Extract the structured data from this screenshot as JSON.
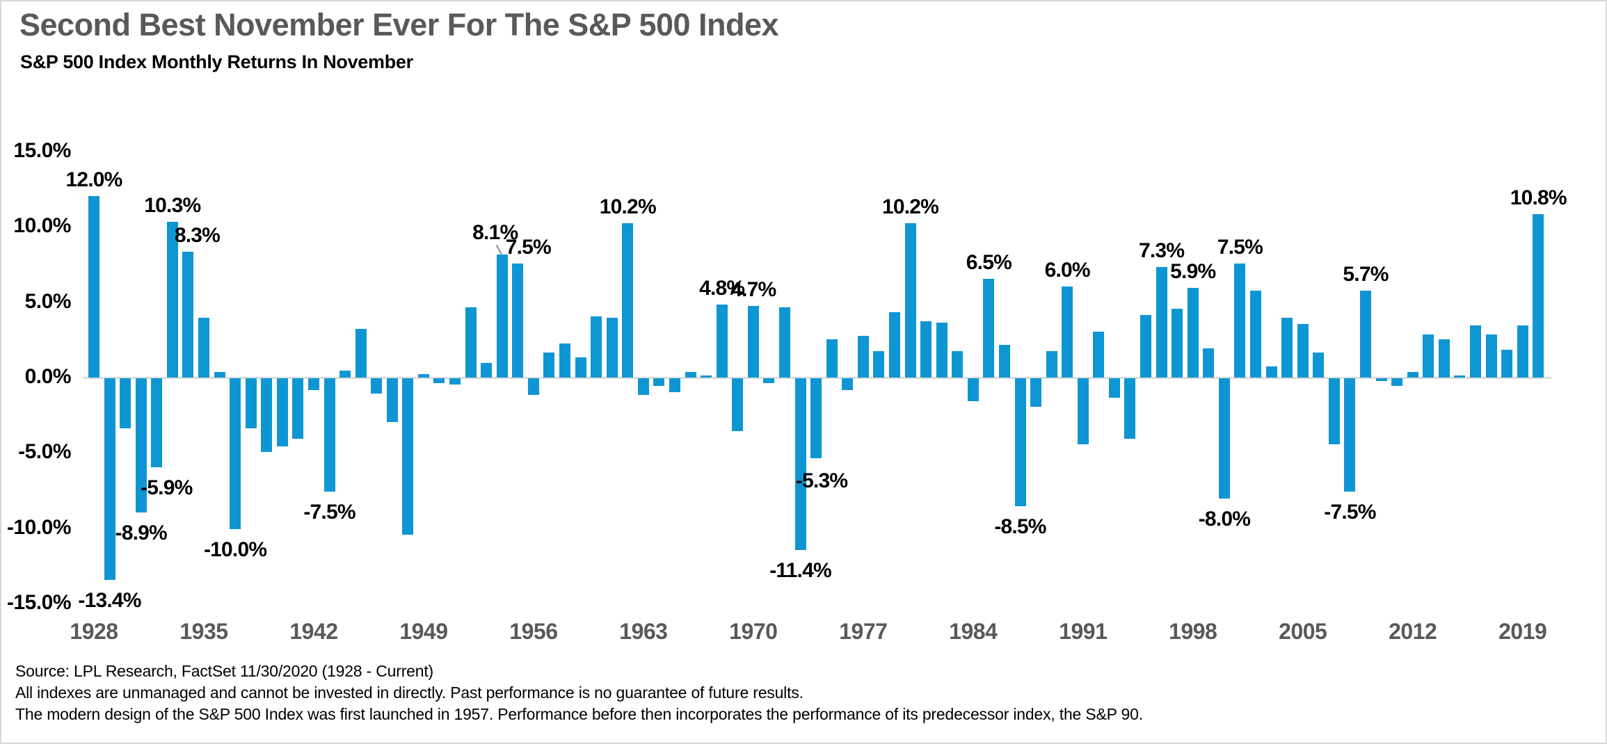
{
  "header": {
    "title": "Second Best November Ever For The S&P 500 Index",
    "subtitle": "S&P 500 Index Monthly Returns In November"
  },
  "chart_data": {
    "type": "bar",
    "title": "Second Best November Ever For The S&P 500 Index",
    "subtitle": "S&P 500 Index Monthly Returns In November",
    "start_year": 1928,
    "end_year": 2020,
    "values": [
      12.0,
      -13.4,
      -3.3,
      -8.9,
      -5.9,
      10.3,
      8.3,
      3.9,
      0.3,
      -10.0,
      -3.3,
      -4.9,
      -4.5,
      -4.0,
      -0.8,
      -7.5,
      0.4,
      3.2,
      -1.0,
      -2.9,
      -10.4,
      0.2,
      -0.3,
      -0.4,
      4.6,
      0.9,
      8.1,
      7.5,
      -1.1,
      1.6,
      2.2,
      1.3,
      4.0,
      3.9,
      10.2,
      -1.1,
      -0.5,
      -0.9,
      0.3,
      0.1,
      4.8,
      -3.5,
      4.7,
      -0.3,
      4.6,
      -11.4,
      -5.3,
      2.5,
      -0.8,
      2.7,
      1.7,
      4.3,
      10.2,
      3.7,
      3.6,
      1.7,
      -1.5,
      6.5,
      2.1,
      -8.5,
      -1.9,
      1.7,
      6.0,
      -4.4,
      3.0,
      -1.3,
      -4.0,
      4.1,
      7.3,
      4.5,
      5.9,
      1.9,
      -8.0,
      7.5,
      5.7,
      0.7,
      3.9,
      3.5,
      1.6,
      -4.4,
      -7.5,
      5.7,
      -0.2,
      -0.5,
      0.3,
      2.8,
      2.5,
      0.1,
      3.4,
      2.8,
      1.8,
      3.4,
      10.8
    ],
    "annotations": [
      {
        "year": 1928,
        "label": "12.0%"
      },
      {
        "year": 1929,
        "label": "-13.4%"
      },
      {
        "year": 1931,
        "label": "-8.9%"
      },
      {
        "year": 1932,
        "label": "-5.9%"
      },
      {
        "year": 1933,
        "label": "10.3%"
      },
      {
        "year": 1934,
        "label": "8.3%"
      },
      {
        "year": 1937,
        "label": "-10.0%"
      },
      {
        "year": 1943,
        "label": "-7.5%"
      },
      {
        "year": 1954,
        "label": "8.1%"
      },
      {
        "year": 1955,
        "label": "7.5%"
      },
      {
        "year": 1962,
        "label": "10.2%"
      },
      {
        "year": 1968,
        "label": "4.8%"
      },
      {
        "year": 1970,
        "label": "4.7%"
      },
      {
        "year": 1973,
        "label": "-11.4%"
      },
      {
        "year": 1974,
        "label": "-5.3%"
      },
      {
        "year": 1980,
        "label": "10.2%"
      },
      {
        "year": 1985,
        "label": "6.5%"
      },
      {
        "year": 1987,
        "label": "-8.5%"
      },
      {
        "year": 1990,
        "label": "6.0%"
      },
      {
        "year": 1996,
        "label": "7.3%"
      },
      {
        "year": 1998,
        "label": "5.9%"
      },
      {
        "year": 2000,
        "label": "-8.0%"
      },
      {
        "year": 2001,
        "label": "7.5%"
      },
      {
        "year": 2008,
        "label": "-7.5%"
      },
      {
        "year": 2009,
        "label": "5.7%"
      },
      {
        "year": 2020,
        "label": "10.8%"
      }
    ],
    "y_axis": {
      "tick_labels": [
        "15.0%",
        "10.0%",
        "5.0%",
        "0.0%",
        "-5.0%",
        "-10.0%",
        "-15.0%"
      ],
      "tick_values": [
        15,
        10,
        5,
        0,
        -5,
        -10,
        -15
      ],
      "min": -15,
      "max": 15,
      "step": 5
    },
    "x_axis": {
      "ticks": [
        1928,
        1935,
        1942,
        1949,
        1956,
        1963,
        1970,
        1977,
        1984,
        1991,
        1998,
        2005,
        2012,
        2019
      ]
    },
    "legend": false,
    "grid": false,
    "colors": {
      "bar": "#0E96D3",
      "zero_line": "#DCDCDC",
      "axis_year_text": "#595959",
      "title_text": "#595959",
      "label_text": "#000000"
    }
  },
  "footer": {
    "lines": [
      "Source: LPL Research, FactSet 11/30/2020 (1928 - Current)",
      "All indexes are unmanaged and cannot be invested in directly. Past performance is no guarantee of future results.",
      "The modern design of the S&P 500 Index was first launched in 1957. Performance before then incorporates the performance of its predecessor index, the S&P 90."
    ]
  }
}
